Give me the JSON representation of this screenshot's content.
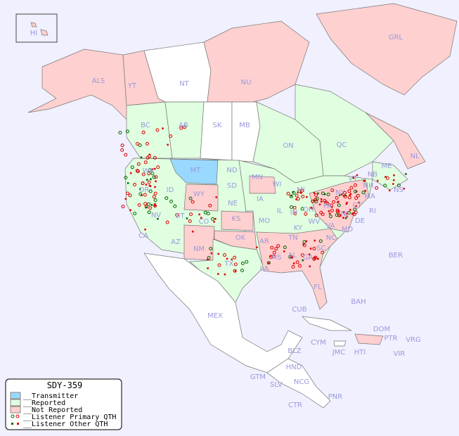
{
  "legend": {
    "title": "SDY-359",
    "items": [
      {
        "label": "__Transmitter",
        "color": "#99d8ff"
      },
      {
        "label": "__Reported",
        "color": "#e0ffe0"
      },
      {
        "label": "__Not Reported",
        "color": "#ffd0d0"
      },
      {
        "label": "__Listener Primary QTH",
        "color_reported": "#006600",
        "color_not_reported": "#dd0000"
      },
      {
        "label": "__Listener Other QTH",
        "color_reported": "#006600",
        "color_not_reported": "#dd0000"
      }
    ]
  },
  "colors": {
    "background": "#f0f0ff",
    "reported": "#e0ffe0",
    "not_reported": "#ffd0d0",
    "transmitter": "#99d8ff",
    "no_data": "#ffffff",
    "label": "#9999dd"
  },
  "regions": {
    "transmitter": [
      "MT"
    ],
    "reported": [
      "BC",
      "AB",
      "ON",
      "QC",
      "NB",
      "NS",
      "WA",
      "OR",
      "ID",
      "NV",
      "CA",
      "UT",
      "AZ",
      "CO",
      "ND",
      "SD",
      "NE",
      "MN",
      "WI",
      "MI",
      "MO",
      "IN",
      "OH",
      "TX",
      "KY",
      "TN",
      "ME",
      "MD"
    ],
    "not_reported": [
      "ALS",
      "YT",
      "NU",
      "GRL",
      "NL",
      "WY",
      "NM",
      "KS",
      "OK",
      "IA",
      "IL",
      "AR",
      "LA",
      "MS",
      "AL",
      "GA",
      "FL",
      "SC",
      "NC",
      "PA",
      "WV",
      "VA",
      "NY",
      "VT",
      "NH",
      "MA",
      "CT",
      "RI",
      "NJ",
      "DE",
      "HI"
    ],
    "no_data": [
      "NT",
      "SK",
      "MB",
      "MEX",
      "BER",
      "BAH",
      "CUB",
      "CYM",
      "JMC",
      "HTI",
      "DOM",
      "PTR",
      "VRG",
      "VIR",
      "BLZ",
      "HND",
      "GTM",
      "SLV",
      "NCG",
      "CTR",
      "PNR"
    ]
  },
  "labels": [
    "HI",
    "ALS",
    "YT",
    "NT",
    "NU",
    "GRL",
    "BC",
    "AB",
    "SK",
    "MB",
    "ON",
    "QC",
    "NL",
    "NB",
    "NS",
    "WA",
    "MT",
    "ND",
    "MN",
    "WI",
    "MI",
    "OR",
    "ID",
    "WY",
    "SD",
    "IA",
    "NY",
    "VT",
    "NH",
    "MA",
    "CT",
    "RI",
    "NV",
    "UT",
    "CO",
    "NE",
    "KS",
    "MO",
    "IL",
    "IN",
    "OH",
    "PA",
    "NJ",
    "DE",
    "MD",
    "WV",
    "VA",
    "KY",
    "CA",
    "AZ",
    "NM",
    "OK",
    "AR",
    "TN",
    "NC",
    "SC",
    "MS",
    "AL",
    "GA",
    "TX",
    "LA",
    "FL",
    "BER",
    "MEX",
    "BAH",
    "CUB",
    "DOM",
    "PTR",
    "VRG",
    "CYM",
    "JMC",
    "HTI",
    "VIR",
    "BLZ",
    "HND",
    "GTM",
    "SLV",
    "NCG",
    "CTR",
    "PNR",
    "ME"
  ]
}
